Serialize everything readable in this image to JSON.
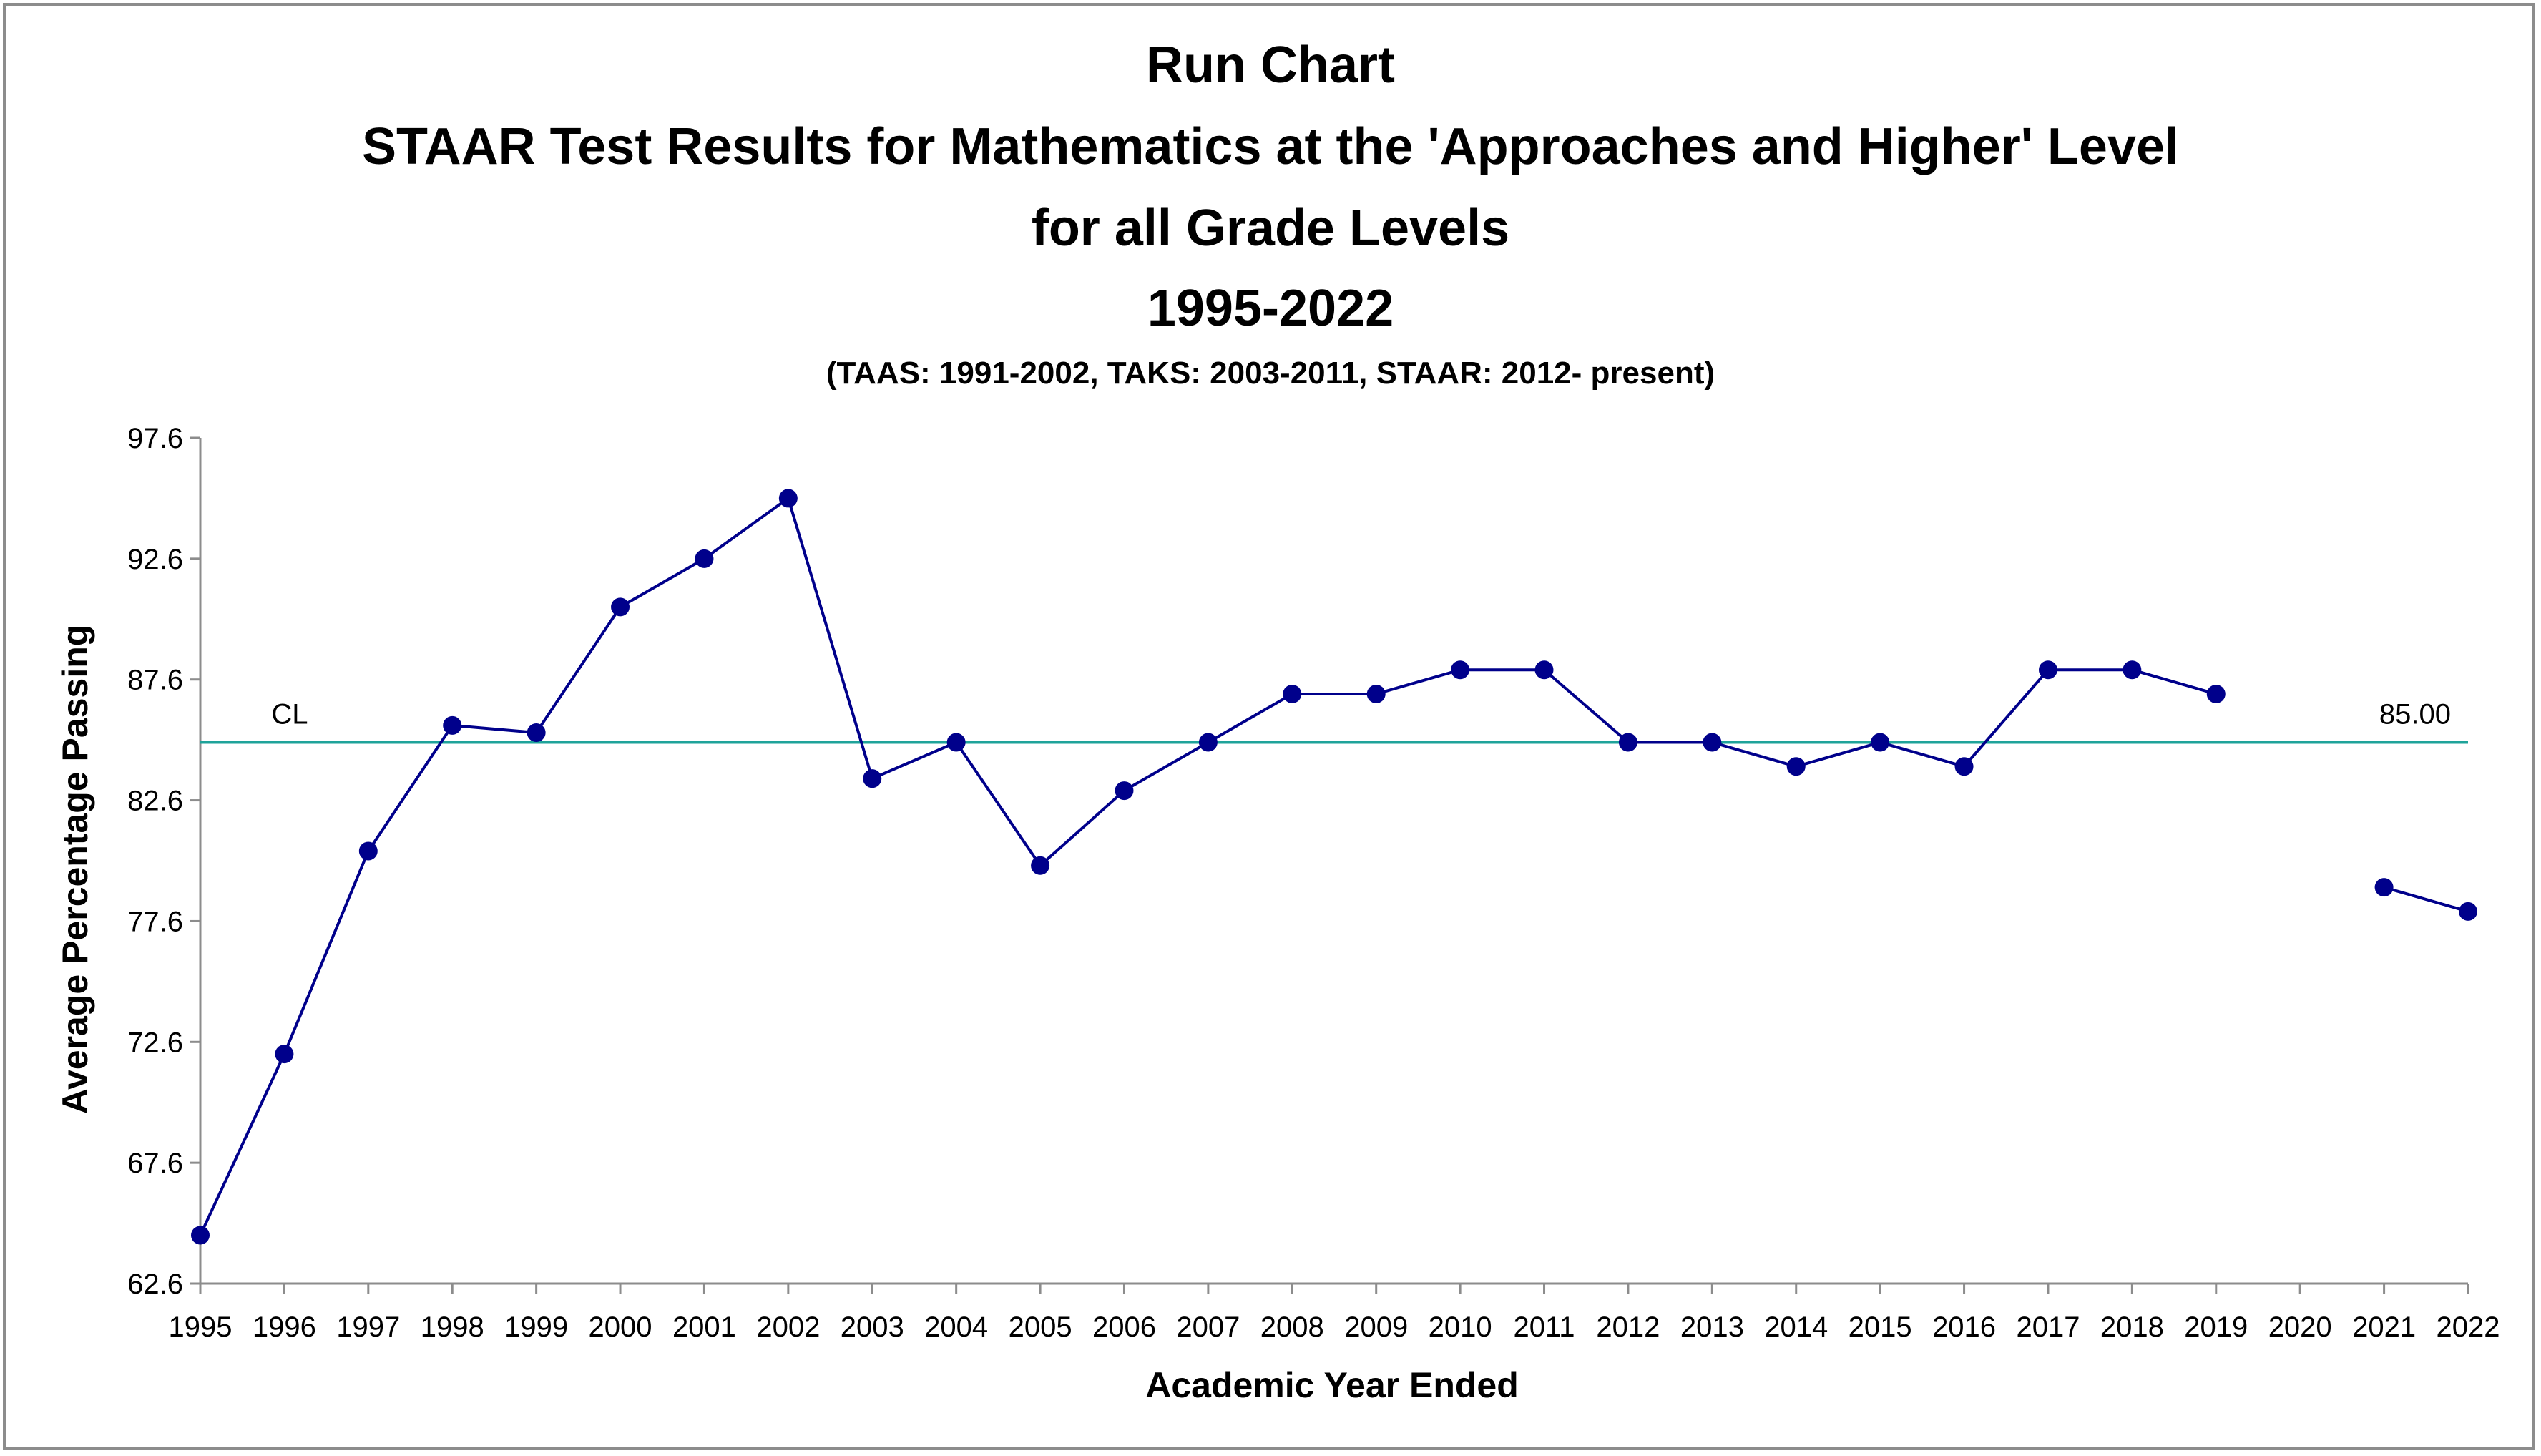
{
  "chart_data": {
    "type": "line",
    "title": "Run Chart",
    "subtitle_lines": [
      "STAAR Test Results for Mathematics at the 'Approaches and Higher' Level",
      "for all Grade Levels",
      "1995-2022"
    ],
    "note": "(TAAS:  1991-2002,  TAKS:  2003-2011, STAAR:  2012- present)",
    "xlabel": "Academic Year Ended",
    "ylabel": "Average Percentage Passing",
    "x": [
      "1995",
      "1996",
      "1997",
      "1998",
      "1999",
      "2000",
      "2001",
      "2002",
      "2003",
      "2004",
      "2005",
      "2006",
      "2007",
      "2008",
      "2009",
      "2010",
      "2011",
      "2012",
      "2013",
      "2014",
      "2015",
      "2016",
      "2017",
      "2018",
      "2019",
      "2020",
      "2021",
      "2022"
    ],
    "series": [
      {
        "values": [
          64.6,
          72.1,
          80.5,
          85.7,
          85.4,
          90.6,
          92.6,
          95.1,
          83.5,
          85.0,
          79.9,
          83.0,
          85.0,
          87.0,
          87.0,
          88.0,
          88.0,
          85.0,
          85.0,
          84.0,
          85.0,
          84.0,
          88.0,
          88.0,
          87.0,
          null,
          79.0,
          78.0
        ],
        "color": "#00008b"
      }
    ],
    "center_line": {
      "label": "CL",
      "value": 85.0,
      "value_label": "85.00",
      "color": "#1fa39a"
    },
    "yticks": [
      "62.6",
      "67.6",
      "72.6",
      "77.6",
      "82.6",
      "87.6",
      "92.6",
      "97.6"
    ],
    "ylim": [
      62.6,
      97.6
    ],
    "grid": false,
    "legend": "none"
  }
}
